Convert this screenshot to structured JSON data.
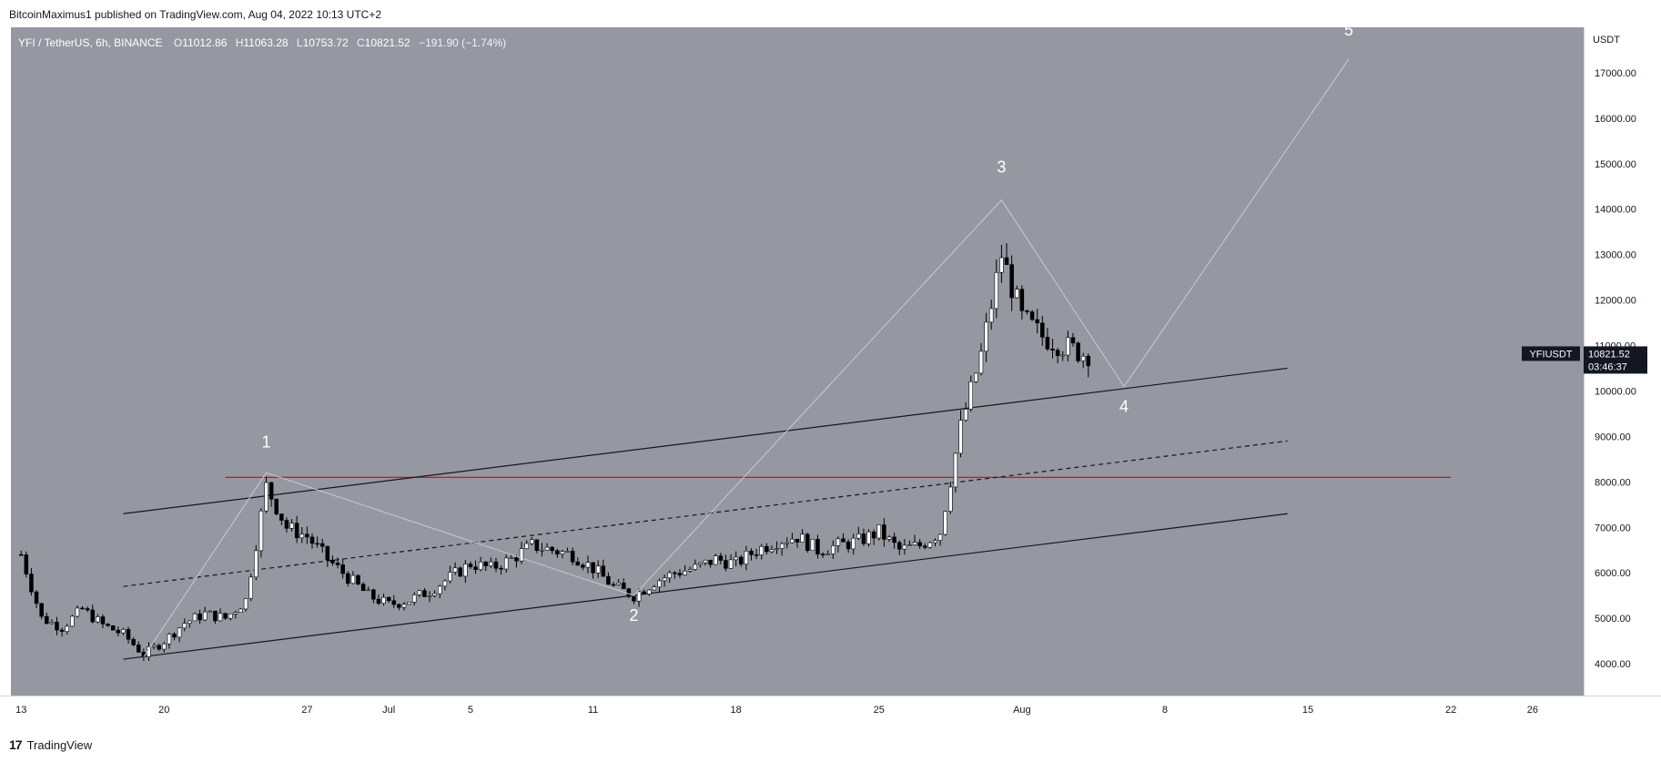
{
  "header": {
    "published": "BitcoinMaximus1 published on TradingView.com, Aug 04, 2022 10:13 UTC+2"
  },
  "symbol": {
    "title": "YFI / TetherUS, 6h, BINANCE",
    "open_label": "O",
    "open": "11012.86",
    "high_label": "H",
    "high": "11063.28",
    "low_label": "L",
    "low": "10753.72",
    "close_label": "C",
    "close": "10821.52",
    "change": "−191.90 (−1.74%)"
  },
  "price_tag": {
    "symbol": "YFIUSDT",
    "price": "10821.52",
    "countdown": "03:46:37"
  },
  "brand": {
    "logo": "17",
    "name": "TradingView"
  },
  "colors": {
    "plot_bg": "#9598a1",
    "resistance": "#e00000",
    "channel": "#131722",
    "wave": "#c8cad0",
    "up_candle": "#ffffff",
    "down_candle": "#000000"
  },
  "chart_data": {
    "type": "candlestick",
    "title": "YFI / TetherUS, 6h, BINANCE",
    "y_axis_label": "USDT",
    "ylim": [
      3300,
      18000
    ],
    "y_ticks": [
      4000,
      5000,
      6000,
      7000,
      8000,
      9000,
      10000,
      11000,
      12000,
      13000,
      14000,
      15000,
      16000,
      17000
    ],
    "y_tick_labels": [
      "4000.00",
      "5000.00",
      "6000.00",
      "7000.00",
      "8000.00",
      "9000.00",
      "10000.00",
      "11000.00",
      "12000.00",
      "13000.00",
      "14000.00",
      "15000.00",
      "16000.00",
      "17000.00"
    ],
    "x_ticks": [
      {
        "label": "13",
        "date": "2022-06-13"
      },
      {
        "label": "20",
        "date": "2022-06-20"
      },
      {
        "label": "27",
        "date": "2022-06-27"
      },
      {
        "label": "Jul",
        "date": "2022-07-01"
      },
      {
        "label": "5",
        "date": "2022-07-05"
      },
      {
        "label": "11",
        "date": "2022-07-11"
      },
      {
        "label": "18",
        "date": "2022-07-18"
      },
      {
        "label": "25",
        "date": "2022-07-25"
      },
      {
        "label": "Aug",
        "date": "2022-08-01"
      },
      {
        "label": "8",
        "date": "2022-08-08"
      },
      {
        "label": "15",
        "date": "2022-08-15"
      },
      {
        "label": "22",
        "date": "2022-08-22"
      },
      {
        "label": "26",
        "date": "2022-08-26"
      }
    ],
    "close_path": [
      [
        "2022-06-13",
        6400
      ],
      [
        "2022-06-14",
        5000
      ],
      [
        "2022-06-15",
        4800
      ],
      [
        "2022-06-16",
        5200
      ],
      [
        "2022-06-17",
        4850
      ],
      [
        "2022-06-18",
        4650
      ],
      [
        "2022-06-19",
        4200
      ],
      [
        "2022-06-20",
        4500
      ],
      [
        "2022-06-21",
        4900
      ],
      [
        "2022-06-22",
        5100
      ],
      [
        "2022-06-23",
        5000
      ],
      [
        "2022-06-24",
        5400
      ],
      [
        "2022-06-25",
        7900
      ],
      [
        "2022-06-26",
        7000
      ],
      [
        "2022-06-27",
        6800
      ],
      [
        "2022-06-28",
        6300
      ],
      [
        "2022-06-29",
        5900
      ],
      [
        "2022-06-30",
        5500
      ],
      [
        "2022-07-01",
        5300
      ],
      [
        "2022-07-02",
        5400
      ],
      [
        "2022-07-03",
        5600
      ],
      [
        "2022-07-04",
        5900
      ],
      [
        "2022-07-05",
        6200
      ],
      [
        "2022-07-06",
        6100
      ],
      [
        "2022-07-07",
        6300
      ],
      [
        "2022-07-08",
        6600
      ],
      [
        "2022-07-09",
        6500
      ],
      [
        "2022-07-10",
        6400
      ],
      [
        "2022-07-11",
        6100
      ],
      [
        "2022-07-12",
        5700
      ],
      [
        "2022-07-13",
        5500
      ],
      [
        "2022-07-14",
        5800
      ],
      [
        "2022-07-15",
        6000
      ],
      [
        "2022-07-16",
        6100
      ],
      [
        "2022-07-17",
        6300
      ],
      [
        "2022-07-18",
        6200
      ],
      [
        "2022-07-19",
        6500
      ],
      [
        "2022-07-20",
        6700
      ],
      [
        "2022-07-21",
        6800
      ],
      [
        "2022-07-22",
        6500
      ],
      [
        "2022-07-23",
        6600
      ],
      [
        "2022-07-24",
        6700
      ],
      [
        "2022-07-25",
        6900
      ],
      [
        "2022-07-26",
        6500
      ],
      [
        "2022-07-27",
        6600
      ],
      [
        "2022-07-28",
        6900
      ],
      [
        "2022-07-29",
        9200
      ],
      [
        "2022-07-30",
        10800
      ],
      [
        "2022-07-31",
        13000
      ],
      [
        "2022-08-01",
        11600
      ],
      [
        "2022-08-02",
        11200
      ],
      [
        "2022-08-03",
        11000
      ],
      [
        "2022-08-04",
        10821
      ]
    ],
    "annotations": [
      {
        "text": "1",
        "date": "2022-06-25",
        "price": 8200
      },
      {
        "text": "2",
        "date": "2022-07-13",
        "price": 5500
      },
      {
        "text": "3",
        "date": "2022-07-31",
        "price": 14200
      },
      {
        "text": "4",
        "date": "2022-08-06",
        "price": 10100
      },
      {
        "text": "5",
        "date": "2022-08-17",
        "price": 17300
      }
    ],
    "resistance_line": {
      "price": 8100,
      "from": "2022-06-23",
      "to": "2022-08-22"
    },
    "channel": {
      "upper": [
        [
          "2022-06-18",
          7300
        ],
        [
          "2022-08-14",
          10500
        ]
      ],
      "middle": [
        [
          "2022-06-18",
          5700
        ],
        [
          "2022-08-14",
          8900
        ]
      ],
      "lower": [
        [
          "2022-06-18",
          4100
        ],
        [
          "2022-08-14",
          7300
        ]
      ]
    }
  }
}
